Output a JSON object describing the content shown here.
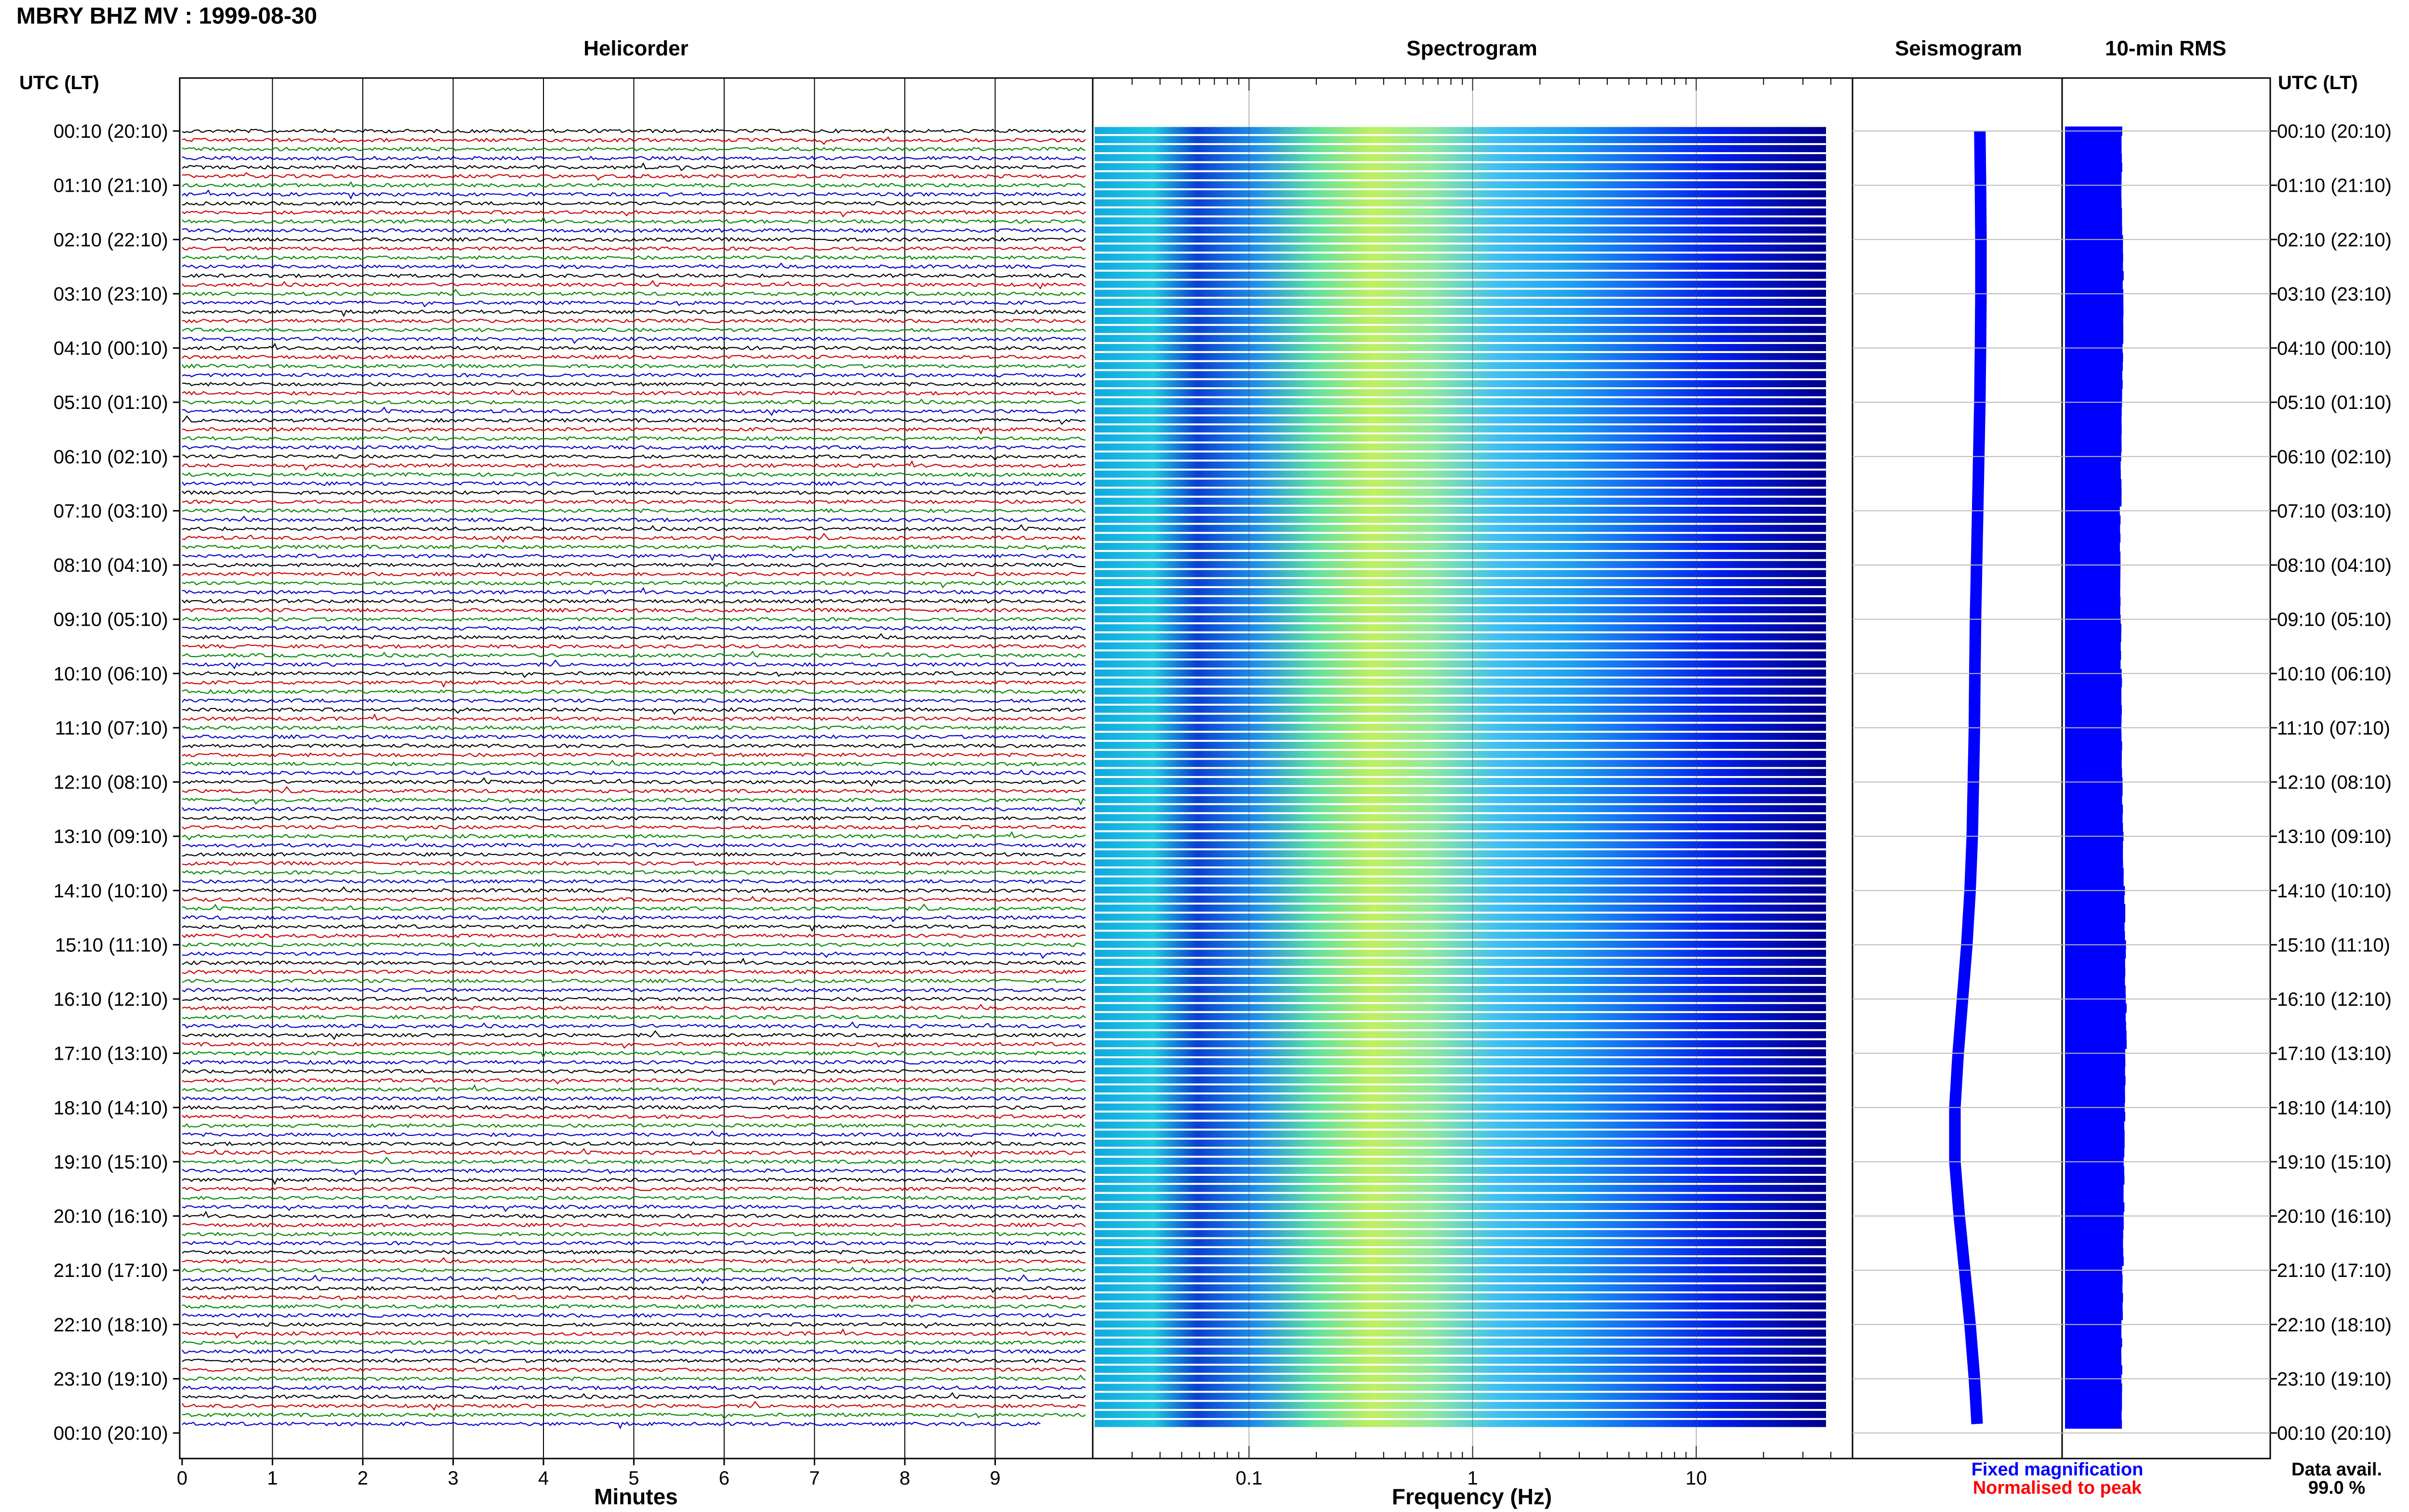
{
  "header": {
    "title": "MBRY BHZ MV : 1999-08-30",
    "utc_label_left": "UTC (LT)",
    "utc_label_right": "UTC (LT)"
  },
  "panels": {
    "helicorder": "Helicorder",
    "spectrogram": "Spectrogram",
    "seismogram": "Seismogram",
    "rms": "10-min RMS"
  },
  "legend": {
    "fixed": "Fixed magnification",
    "normalised": "Normalised to peak",
    "fixed_color": "#0000ff",
    "normalised_color": "#ff0000"
  },
  "availability": {
    "label": "Data avail.",
    "value": "99.0 %"
  },
  "chart_data": [
    {
      "type": "line",
      "panel": "helicorder",
      "xlabel": "Minutes",
      "x_ticks": [
        "0",
        "1",
        "2",
        "3",
        "4",
        "5",
        "6",
        "7",
        "8",
        "9"
      ],
      "xlim": [
        0,
        10
      ],
      "row_minutes": 10,
      "trace_colors": [
        "#000000",
        "#cc0000",
        "#008800",
        "#0000cc"
      ],
      "y_ticks_utc": [
        "00:10 (20:10)",
        "01:10 (21:10)",
        "02:10 (22:10)",
        "03:10 (23:10)",
        "04:10 (00:10)",
        "05:10 (01:10)",
        "06:10 (02:10)",
        "07:10 (03:10)",
        "08:10 (04:10)",
        "09:10 (05:10)",
        "10:10 (06:10)",
        "11:10 (07:10)",
        "12:10 (08:10)",
        "13:10 (09:10)",
        "14:10 (10:10)",
        "15:10 (11:10)",
        "16:10 (12:10)",
        "17:10 (13:10)",
        "18:10 (14:10)",
        "19:10 (15:10)",
        "20:10 (16:10)",
        "21:10 (17:10)",
        "22:10 (18:10)",
        "23:10 (19:10)",
        "00:10 (20:10)"
      ]
    },
    {
      "type": "heatmap",
      "panel": "spectrogram",
      "xlabel": "Frequency (Hz)",
      "x_scale": "log",
      "xlim": [
        0.02,
        50
      ],
      "x_ticks": [
        "0.1",
        "1",
        "10"
      ],
      "colormap": [
        "#00008c",
        "#0000ff",
        "#0080ff",
        "#00c0ff",
        "#40e0d0",
        "#a0f080",
        "#ffff40"
      ],
      "peak_band_hz": [
        0.2,
        0.6
      ]
    },
    {
      "type": "line",
      "panel": "seismogram",
      "color": "#0000ff",
      "hourly_offsets": [
        0.15,
        0.18,
        0.2,
        0.2,
        0.18,
        0.15,
        0.1,
        0.05,
        0.0,
        -0.05,
        -0.08,
        -0.1,
        -0.15,
        -0.2,
        -0.3,
        -0.45,
        -0.65,
        -0.85,
        -1.0,
        -1.0,
        -0.8,
        -0.55,
        -0.3,
        -0.1,
        0.05
      ]
    },
    {
      "type": "bar",
      "panel": "rms",
      "color": "#0000ff",
      "relative_level": [
        0.78,
        0.78,
        0.8,
        0.8,
        0.79,
        0.78,
        0.77,
        0.76,
        0.76,
        0.77,
        0.78,
        0.78,
        0.79,
        0.8,
        0.82,
        0.83,
        0.84,
        0.83,
        0.82,
        0.81,
        0.8,
        0.79,
        0.78,
        0.78
      ]
    }
  ]
}
